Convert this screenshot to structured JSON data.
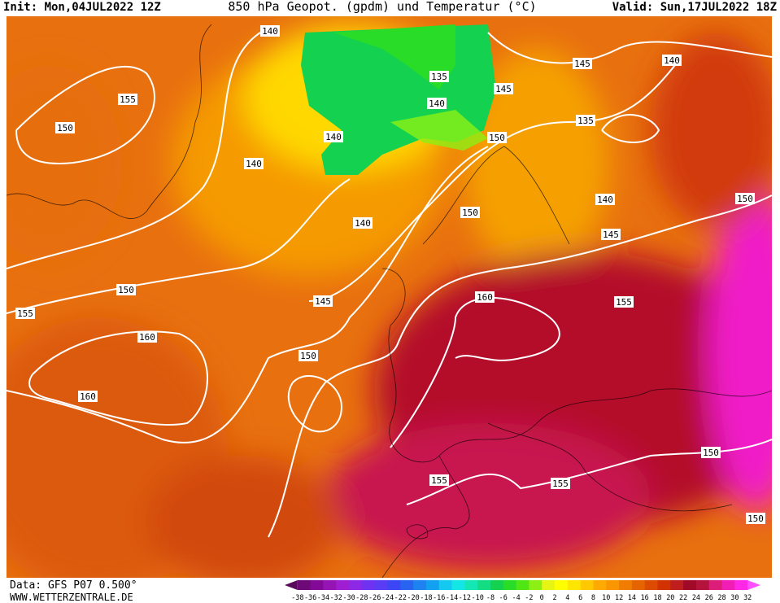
{
  "header": {
    "init": "Init: Mon,04JUL2022 12Z",
    "title": "850 hPa Geopot. (gpdm) und Temperatur (°C)",
    "valid": "Valid: Sun,17JUL2022 18Z"
  },
  "footer": {
    "source": "Data: GFS P07 0.500°",
    "site": "WWW.WETTERZENTRALE.DE"
  },
  "geopotential_labels": [
    140,
    155,
    150,
    135,
    140,
    145,
    145,
    140,
    135,
    150,
    140,
    140,
    140,
    150,
    140,
    150,
    145,
    160,
    155,
    150,
    155,
    145,
    160,
    150,
    160,
    150,
    155,
    155,
    150
  ],
  "legend": {
    "ticks": [
      -38,
      -36,
      -34,
      -32,
      -30,
      -28,
      -26,
      -24,
      -22,
      -20,
      -18,
      -16,
      -14,
      -12,
      -10,
      -8,
      -6,
      -4,
      -2,
      0,
      2,
      4,
      6,
      8,
      10,
      12,
      14,
      16,
      18,
      20,
      22,
      24,
      26,
      28,
      30,
      32
    ],
    "colors": [
      "#5a0a5a",
      "#6e0a78",
      "#820a96",
      "#9614b4",
      "#a01ed2",
      "#8c28e6",
      "#6e32f0",
      "#5a3cf5",
      "#3c46f5",
      "#2864f0",
      "#1e82f0",
      "#14a0f0",
      "#14c8f0",
      "#14e6e6",
      "#14e6b4",
      "#14dc82",
      "#14d250",
      "#28dc28",
      "#50e614",
      "#8cf014",
      "#e6f514",
      "#ffff00",
      "#ffe600",
      "#ffc800",
      "#ffaa00",
      "#fa9600",
      "#f07d00",
      "#e66400",
      "#dc4b00",
      "#d23200",
      "#be1e1e",
      "#a00a28",
      "#b4143c",
      "#dc1e78",
      "#f01eb4",
      "#ff28e6",
      "#ff50ff"
    ]
  }
}
